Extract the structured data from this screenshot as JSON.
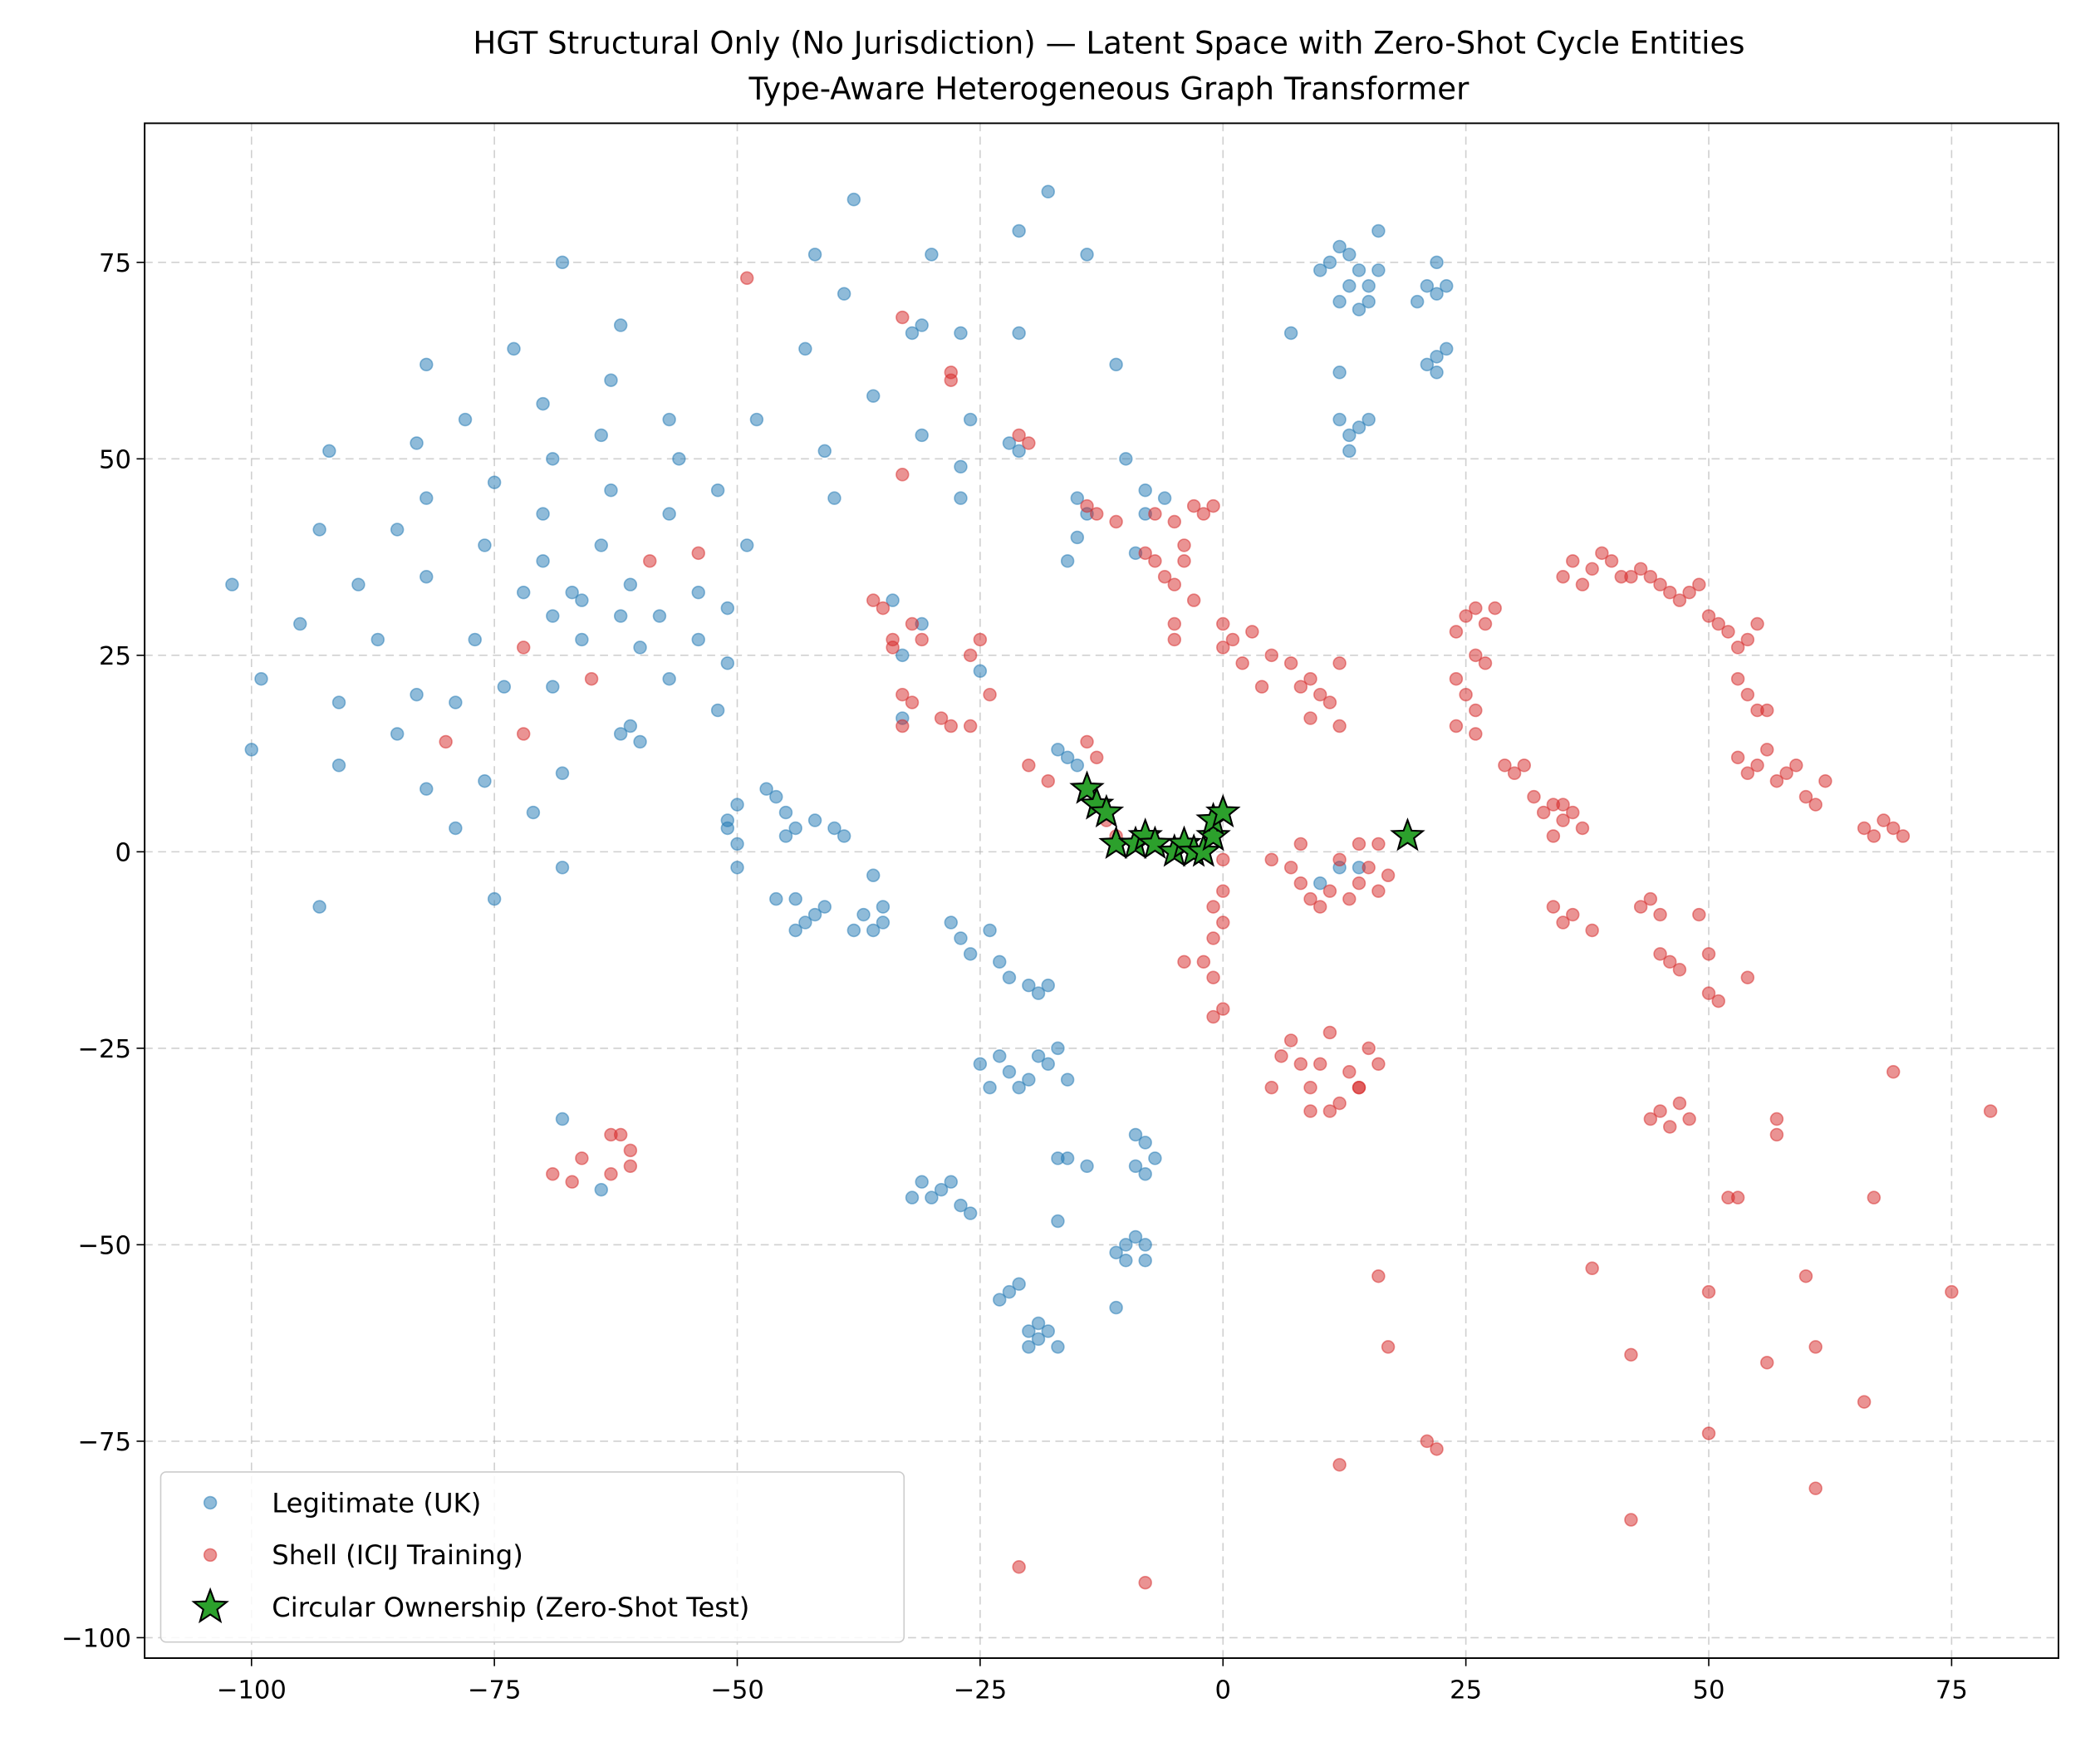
{
  "chart_data": {
    "type": "scatter",
    "title": "HGT Structural Only (No Jurisdiction) — Latent Space with Zero-Shot Cycle Entities",
    "subtitle": "Type-Aware Heterogeneous Graph Transformer",
    "xlim": [
      -111,
      86
    ],
    "ylim": [
      -102.6,
      92.7
    ],
    "xticks": [
      {
        "value": -100,
        "label": "−100"
      },
      {
        "value": -75,
        "label": "−75"
      },
      {
        "value": -50,
        "label": "−50"
      },
      {
        "value": -25,
        "label": "−25"
      },
      0,
      25,
      50,
      75
    ],
    "yticks": [
      {
        "value": -100,
        "label": "−100"
      },
      {
        "value": -75,
        "label": "−75"
      },
      {
        "value": -50,
        "label": "−50"
      },
      {
        "value": -25,
        "label": "−25"
      },
      0,
      25,
      50,
      75
    ],
    "grid": true,
    "legend": "lower left",
    "series": [
      {
        "name": "Legitimate (UK)",
        "color": "#1f77b4",
        "marker": "circle",
        "x": [
          -102,
          -99,
          -100,
          -95,
          -93,
          -92,
          -91,
          -91,
          -89,
          -87,
          -85,
          -85,
          -83,
          -83,
          -82,
          -82,
          -82,
          -82,
          -79,
          -79,
          -78,
          -77,
          -76,
          -76,
          -75,
          -75,
          -74,
          -73,
          -72,
          -71,
          -70,
          -70,
          -70,
          -69,
          -69,
          -69,
          -68,
          -68,
          -68,
          -67,
          -66,
          -66,
          -64,
          -64,
          -63,
          -63,
          -62,
          -62,
          -62,
          -61,
          -61,
          -60,
          -60,
          -58,
          -57,
          -57,
          -57,
          -56,
          -54,
          -54,
          -52,
          -52,
          -51,
          -51,
          -49,
          -93,
          -68,
          -64,
          -38,
          -42,
          -39,
          -43,
          -30,
          -31,
          -32,
          -27,
          -21,
          -21,
          -36,
          -41,
          -40,
          -31,
          -26,
          -27,
          -27,
          -18,
          -14,
          -22,
          -21,
          -11,
          -10,
          -48,
          -51,
          -51,
          -50,
          -50,
          -50,
          -47,
          -46,
          -45,
          -45,
          -44,
          -42,
          -40,
          -39,
          -46,
          -44,
          -43,
          -42,
          -44,
          -41,
          -36,
          -37,
          -35,
          -36,
          -35,
          -38,
          -28,
          -27,
          -26,
          -24,
          -23,
          -22,
          -20,
          -19,
          -18,
          -25,
          -23,
          -22,
          -21,
          -20,
          -19,
          -18,
          -17,
          -16,
          -24,
          -31,
          -30,
          -29,
          -28,
          -27,
          -26,
          -32,
          -17,
          -16,
          -14,
          -17,
          -9,
          -8,
          -9,
          -8,
          -7,
          -10,
          -9,
          -8,
          -11,
          -10,
          -8,
          -11,
          -22,
          -21,
          -23,
          -20,
          -19,
          -18,
          -17,
          -20,
          -19,
          10,
          11,
          12,
          13,
          14,
          15,
          14,
          16,
          16,
          12,
          13,
          15,
          12,
          12,
          13,
          14,
          15,
          13,
          21,
          22,
          22,
          23,
          20,
          21,
          22,
          23,
          22,
          7,
          -15,
          -16,
          -15,
          -14,
          -8,
          -6,
          -8,
          -9,
          -17,
          -16,
          -15,
          12,
          14,
          10,
          -34,
          -33,
          -31,
          -33,
          -25
        ],
        "y": [
          34,
          22,
          13,
          29,
          41,
          51,
          11,
          19,
          34,
          27,
          41,
          15,
          20,
          52,
          8,
          45,
          35,
          62,
          3,
          19,
          55,
          27,
          39,
          9,
          47,
          -6,
          21,
          64,
          33,
          5,
          57,
          43,
          37,
          50,
          30,
          21,
          -2,
          10,
          75,
          33,
          27,
          32,
          39,
          53,
          46,
          60,
          15,
          30,
          67,
          16,
          34,
          14,
          26,
          30,
          43,
          55,
          22,
          50,
          33,
          27,
          18,
          46,
          24,
          31,
          39,
          -7,
          -34,
          -43,
          83,
          76,
          71,
          64,
          76,
          67,
          66,
          66,
          79,
          66,
          58,
          51,
          45,
          53,
          55,
          49,
          45,
          84,
          76,
          52,
          51,
          62,
          50,
          55,
          4,
          3,
          6,
          1,
          -2,
          8,
          7,
          5,
          2,
          3,
          4,
          3,
          2,
          -6,
          -6,
          -9,
          -8,
          -10,
          -7,
          -3,
          -8,
          -9,
          -10,
          -7,
          -10,
          -9,
          -11,
          -13,
          -10,
          -14,
          -16,
          -17,
          -18,
          -17,
          -27,
          -26,
          -28,
          -30,
          -29,
          -26,
          -27,
          -25,
          -29,
          -30,
          -42,
          -44,
          -43,
          -42,
          -45,
          -46,
          -44,
          -39,
          -39,
          -40,
          -47,
          -36,
          -37,
          -40,
          -41,
          -39,
          -50,
          -49,
          -50,
          -51,
          -52,
          -52,
          -58,
          -56,
          -55,
          -57,
          -61,
          -62,
          -61,
          -63,
          -63,
          -60,
          74,
          75,
          77,
          76,
          74,
          72,
          69,
          74,
          79,
          70,
          72,
          70,
          61,
          55,
          53,
          54,
          55,
          51,
          72,
          75,
          71,
          72,
          70,
          62,
          63,
          64,
          61,
          66,
          45,
          37,
          40,
          43,
          46,
          45,
          43,
          38,
          13,
          12,
          11,
          -2,
          -2,
          -4,
          32,
          25,
          29,
          17,
          23
        ]
      },
      {
        "name": "Shell (ICIJ Training)",
        "color": "#d62728",
        "marker": "circle",
        "x": [
          -49,
          -33,
          -28,
          -28,
          -21,
          -20,
          -33,
          -14,
          -13,
          -11,
          -7,
          -5,
          -3,
          -1,
          -2,
          -8,
          -7,
          -6,
          -5,
          -4,
          -4,
          -3,
          -5,
          -5,
          -36,
          -35,
          -34,
          -34,
          -32,
          -31,
          -33,
          -32,
          -33,
          -29,
          -28,
          -26,
          -26,
          -25,
          -24,
          -59,
          -54,
          -72,
          -65,
          -80,
          -72,
          0,
          0,
          1,
          2,
          3,
          4,
          5,
          7,
          8,
          9,
          10,
          11,
          12,
          12,
          9,
          -20,
          -18,
          -14,
          -13,
          -12,
          -11,
          0,
          -1,
          0,
          -1,
          -2,
          -1,
          0,
          -1,
          -4,
          5,
          8,
          7,
          8,
          9,
          10,
          11,
          12,
          13,
          14,
          15,
          16,
          17,
          16,
          14,
          6,
          7,
          8,
          9,
          10,
          11,
          12,
          13,
          14,
          15,
          5,
          16,
          9,
          11,
          24,
          25,
          26,
          27,
          28,
          24,
          25,
          26,
          26,
          27,
          24,
          26,
          29,
          30,
          31,
          32,
          33,
          34,
          35,
          34,
          35,
          36,
          37,
          35,
          36,
          37,
          38,
          39,
          40,
          41,
          42,
          43,
          44,
          45,
          46,
          47,
          48,
          49,
          50,
          51,
          52,
          53,
          54,
          55,
          53,
          54,
          55,
          56,
          53,
          54,
          55,
          56,
          57,
          58,
          59,
          60,
          61,
          62,
          66,
          67,
          68,
          69,
          70,
          34,
          35,
          36,
          38,
          43,
          44,
          45,
          46,
          45,
          47,
          49,
          50,
          50,
          51,
          54,
          44,
          45,
          46,
          47,
          48,
          57,
          57,
          52,
          53,
          67,
          69,
          79,
          16,
          17,
          38,
          42,
          50,
          56,
          60,
          61,
          66,
          75,
          21,
          22,
          12,
          42,
          50,
          61,
          -21,
          -8,
          -62,
          -61,
          -61,
          -63,
          -66,
          -67,
          -69,
          -63,
          14,
          0
        ],
        "y": [
          73,
          68,
          61,
          60,
          53,
          52,
          48,
          44,
          43,
          42,
          43,
          42,
          44,
          44,
          43,
          38,
          37,
          35,
          34,
          39,
          37,
          32,
          29,
          27,
          32,
          31,
          27,
          26,
          29,
          27,
          20,
          19,
          16,
          17,
          16,
          16,
          25,
          27,
          20,
          37,
          38,
          26,
          22,
          14,
          15,
          29,
          26,
          27,
          24,
          28,
          21,
          25,
          24,
          21,
          22,
          20,
          19,
          24,
          16,
          17,
          11,
          9,
          14,
          12,
          4,
          2,
          -5,
          -7,
          -9,
          -11,
          -14,
          -16,
          -20,
          -21,
          -14,
          -1,
          1,
          -2,
          -4,
          -6,
          -7,
          -5,
          -1,
          -6,
          -4,
          -2,
          -5,
          -3,
          1,
          1,
          -26,
          -24,
          -27,
          -30,
          -27,
          -23,
          -32,
          -28,
          -30,
          -25,
          -30,
          -27,
          -33,
          -33,
          28,
          30,
          31,
          29,
          31,
          22,
          20,
          18,
          25,
          24,
          16,
          15,
          11,
          10,
          11,
          7,
          5,
          6,
          4,
          2,
          6,
          5,
          3,
          35,
          37,
          34,
          36,
          38,
          37,
          35,
          35,
          36,
          35,
          34,
          33,
          32,
          33,
          34,
          30,
          29,
          28,
          26,
          27,
          29,
          22,
          20,
          18,
          18,
          12,
          10,
          11,
          13,
          9,
          10,
          11,
          7,
          6,
          9,
          3,
          2,
          4,
          3,
          2,
          -7,
          -9,
          -8,
          -10,
          -7,
          -6,
          -8,
          -14,
          -13,
          -15,
          -8,
          -13,
          -18,
          -19,
          -16,
          -34,
          -33,
          -35,
          -32,
          -34,
          -36,
          -34,
          -44,
          -44,
          -44,
          -28,
          -33,
          -54,
          -63,
          -53,
          -64,
          -56,
          -65,
          -54,
          -63,
          -70,
          -56,
          -75,
          -76,
          -78,
          -85,
          -74,
          -81,
          -91,
          -93,
          -36,
          -38,
          -40,
          -41,
          -39,
          -42,
          -41,
          -36,
          -30,
          -1
        ]
      },
      {
        "name": "Circular Ownership (Zero-Shot Test)",
        "color": "#2ca02c",
        "marker": "star",
        "x": [
          -14,
          -13,
          -12,
          -11,
          -9,
          -8,
          -7,
          -5,
          -4,
          -3,
          -2,
          -1,
          -1,
          0,
          19
        ],
        "y": [
          8,
          6,
          5,
          1,
          1,
          2,
          1,
          0,
          1,
          0,
          0,
          2,
          4,
          5,
          2
        ]
      }
    ]
  }
}
